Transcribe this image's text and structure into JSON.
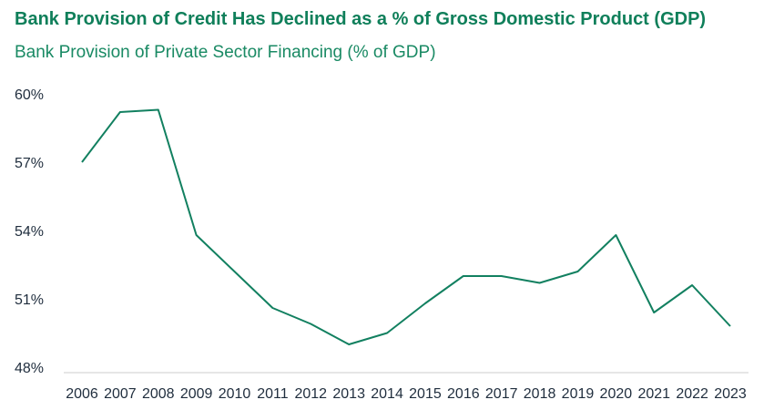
{
  "title": "Bank Provision of Credit Has Declined as a % of Gross Domestic Product (GDP)",
  "subtitle": "Bank Provision of Private Sector Financing (% of GDP)",
  "colors": {
    "line": "#128060",
    "title": "#0f7f5a",
    "axis": "#cccccc",
    "text": "#1f2d3d"
  },
  "chart_data": {
    "type": "line",
    "title": "Bank Provision of Credit Has Declined as a % of Gross Domestic Product (GDP)",
    "subtitle": "Bank Provision of Private Sector Financing (% of GDP)",
    "x": [
      "2006",
      "2007",
      "2008",
      "2009",
      "2010",
      "2011",
      "2012",
      "2013",
      "2014",
      "2015",
      "2016",
      "2017",
      "2018",
      "2019",
      "2020",
      "2021",
      "2022",
      "2023"
    ],
    "series": [
      {
        "values": [
          57.0,
          59.2,
          59.3,
          53.8,
          52.2,
          50.6,
          49.9,
          49.0,
          49.5,
          50.8,
          52.0,
          52.0,
          51.7,
          52.2,
          53.8,
          50.4,
          51.6,
          49.8
        ]
      }
    ],
    "ylim": [
      48,
      60
    ],
    "yticks": [
      48,
      51,
      54,
      57,
      60
    ],
    "ytick_labels": [
      "48%",
      "51%",
      "54%",
      "57%",
      "60%"
    ],
    "grid": false
  }
}
